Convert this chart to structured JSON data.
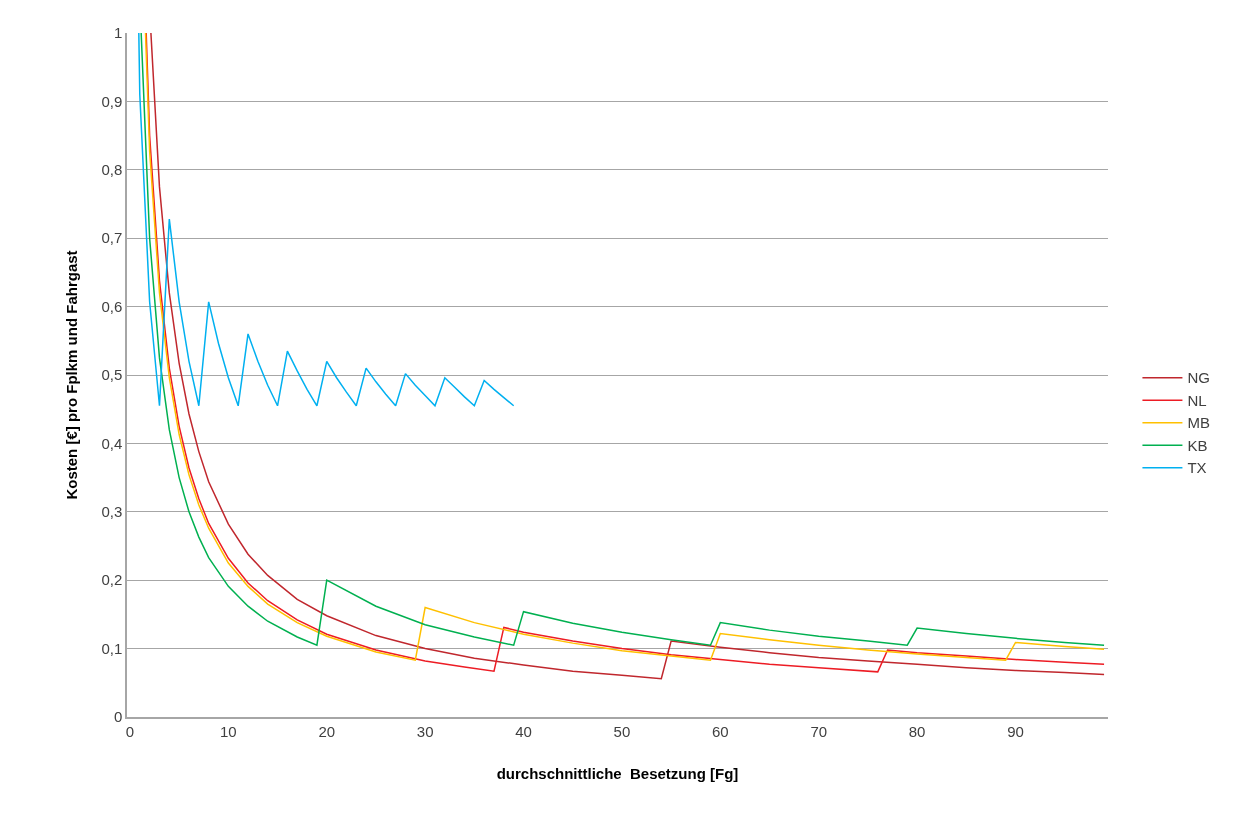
{
  "chart_data": {
    "type": "line",
    "xlabel": "durchschnittliche  Besetzung [Fg]",
    "ylabel": "Kosten [€] pro Fplkm und Fahrgast",
    "xlim": [
      -0.3,
      99.4
    ],
    "xticks": [
      0,
      10,
      20,
      30,
      40,
      50,
      60,
      70,
      80,
      90
    ],
    "ylim": [
      0,
      1
    ],
    "yticks": [
      0,
      {
        "value": 0.1,
        "label": "0,1"
      },
      {
        "value": 0.2,
        "label": "0,2"
      },
      {
        "value": 0.3,
        "label": "0,3"
      },
      {
        "value": 0.4,
        "label": "0,4"
      },
      {
        "value": 0.5,
        "label": "0,5"
      },
      {
        "value": 0.6,
        "label": "0,6"
      },
      {
        "value": 0.7,
        "label": "0,7"
      },
      {
        "value": 0.8,
        "label": "0,8"
      },
      {
        "value": 0.9,
        "label": "0,9"
      },
      1
    ],
    "grid": "y",
    "legend": "right",
    "marker": "none",
    "line_style": "solid",
    "series": [
      {
        "name": "NG",
        "color": "#c0272d",
        "x": [
          2.13,
          3,
          4,
          5,
          6,
          7,
          8,
          10,
          12,
          14,
          17,
          20,
          25,
          30,
          35,
          40,
          45,
          50,
          54,
          55,
          60,
          65,
          70,
          75,
          80,
          85,
          90,
          95,
          99
        ],
        "values": [
          1.0,
          0.775,
          0.62,
          0.517,
          0.443,
          0.388,
          0.344,
          0.282,
          0.238,
          0.207,
          0.172,
          0.148,
          0.119,
          0.1,
          0.086,
          0.076,
          0.067,
          0.061,
          0.056,
          0.111,
          0.102,
          0.094,
          0.087,
          0.082,
          0.077,
          0.072,
          0.068,
          0.065,
          0.062
        ]
      },
      {
        "name": "NL",
        "color": "#ed1c24",
        "x": [
          1.65,
          2,
          3,
          4,
          5,
          6,
          7,
          8,
          10,
          12,
          14,
          17,
          20,
          25,
          30,
          34,
          37,
          38,
          40,
          45,
          50,
          55,
          60,
          65,
          70,
          76,
          77,
          80,
          85,
          90,
          95,
          99
        ],
        "values": [
          1.0,
          0.85,
          0.638,
          0.51,
          0.425,
          0.364,
          0.319,
          0.283,
          0.232,
          0.196,
          0.17,
          0.142,
          0.121,
          0.098,
          0.082,
          0.073,
          0.067,
          0.131,
          0.124,
          0.111,
          0.1,
          0.091,
          0.084,
          0.077,
          0.072,
          0.066,
          0.098,
          0.094,
          0.089,
          0.084,
          0.08,
          0.077
        ]
      },
      {
        "name": "MB",
        "color": "#ffc000",
        "x": [
          1.58,
          2,
          3,
          4,
          5,
          6,
          7,
          8,
          10,
          12,
          14,
          17,
          20,
          25,
          29,
          30,
          35,
          40,
          45,
          50,
          55,
          59,
          60,
          65,
          70,
          75,
          80,
          85,
          89,
          90,
          95,
          99
        ],
        "values": [
          1.0,
          0.827,
          0.62,
          0.496,
          0.413,
          0.354,
          0.31,
          0.276,
          0.225,
          0.191,
          0.165,
          0.138,
          0.118,
          0.095,
          0.083,
          0.16,
          0.138,
          0.121,
          0.108,
          0.097,
          0.089,
          0.083,
          0.122,
          0.113,
          0.105,
          0.098,
          0.092,
          0.087,
          0.083,
          0.109,
          0.103,
          0.099
        ]
      },
      {
        "name": "KB",
        "color": "#00b050",
        "x": [
          1.14,
          2,
          3,
          4,
          5,
          6,
          7,
          8,
          10,
          12,
          14,
          17,
          19,
          20,
          25,
          30,
          35,
          39,
          40,
          45,
          50,
          55,
          59,
          60,
          65,
          70,
          75,
          79,
          80,
          85,
          90,
          95,
          99
        ],
        "values": [
          1.0,
          0.7,
          0.525,
          0.42,
          0.35,
          0.3,
          0.263,
          0.233,
          0.191,
          0.162,
          0.14,
          0.117,
          0.105,
          0.2,
          0.162,
          0.135,
          0.117,
          0.105,
          0.154,
          0.137,
          0.124,
          0.113,
          0.105,
          0.138,
          0.127,
          0.118,
          0.111,
          0.105,
          0.13,
          0.122,
          0.115,
          0.109,
          0.105
        ]
      },
      {
        "name": "TX",
        "color": "#00b0f0",
        "x": [
          0.9,
          1,
          2,
          3,
          4,
          5,
          6,
          7,
          8,
          9,
          10,
          11,
          12,
          13,
          14,
          15,
          16,
          17,
          18,
          19,
          20,
          21,
          22,
          23,
          24,
          25,
          26,
          27,
          28,
          29,
          30,
          31,
          32,
          33,
          34,
          35,
          36,
          37,
          38,
          39
        ],
        "values": [
          1.0,
          0.91,
          0.607,
          0.455,
          0.728,
          0.607,
          0.52,
          0.455,
          0.607,
          0.546,
          0.496,
          0.455,
          0.56,
          0.52,
          0.485,
          0.455,
          0.535,
          0.506,
          0.479,
          0.455,
          0.52,
          0.496,
          0.475,
          0.455,
          0.51,
          0.49,
          0.472,
          0.455,
          0.502,
          0.485,
          0.47,
          0.455,
          0.496,
          0.482,
          0.468,
          0.455,
          0.492,
          0.479,
          0.467,
          0.455
        ]
      }
    ]
  }
}
